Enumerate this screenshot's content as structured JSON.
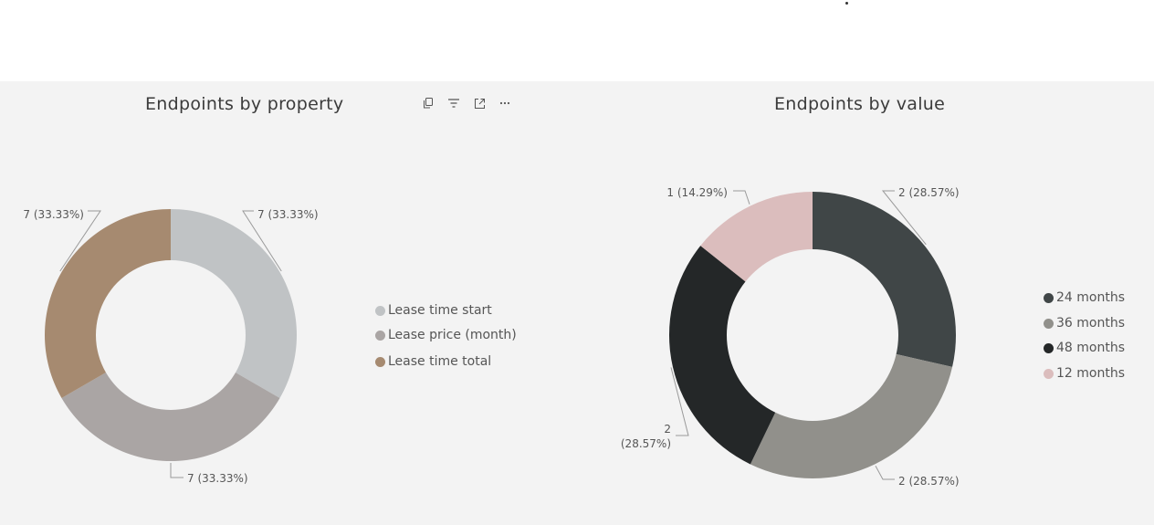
{
  "chart_data": [
    {
      "type": "donut",
      "title": "Endpoints by property",
      "slices": [
        {
          "label": "Lease time start",
          "value": 7,
          "percent_label": "7 (33.33%)",
          "color": "#c0c3c5"
        },
        {
          "label": "Lease price (month)",
          "value": 7,
          "percent_label": "7 (33.33%)",
          "color": "#aaa5a4"
        },
        {
          "label": "Lease time total",
          "value": 7,
          "percent_label": "7 (33.33%)",
          "color": "#a68a70"
        }
      ],
      "legend_position": "right"
    },
    {
      "type": "donut",
      "title": "Endpoints by value",
      "slices": [
        {
          "label": "24 months",
          "value": 2,
          "percent_label": "2 (28.57%)",
          "color": "#404647"
        },
        {
          "label": "36 months",
          "value": 2,
          "percent_label": "2 (28.57%)",
          "color": "#91908b"
        },
        {
          "label": "48 months",
          "value": 2,
          "percent_label": "2\n(28.57%)",
          "color": "#242728"
        },
        {
          "label": "12 months",
          "value": 1,
          "percent_label": "1 (14.29%)",
          "color": "#dbbdbd"
        }
      ],
      "legend_position": "right"
    }
  ],
  "toolbar": {
    "icons": [
      "copy-icon",
      "filter-icon",
      "focus-mode-icon",
      "more-options-icon"
    ]
  }
}
